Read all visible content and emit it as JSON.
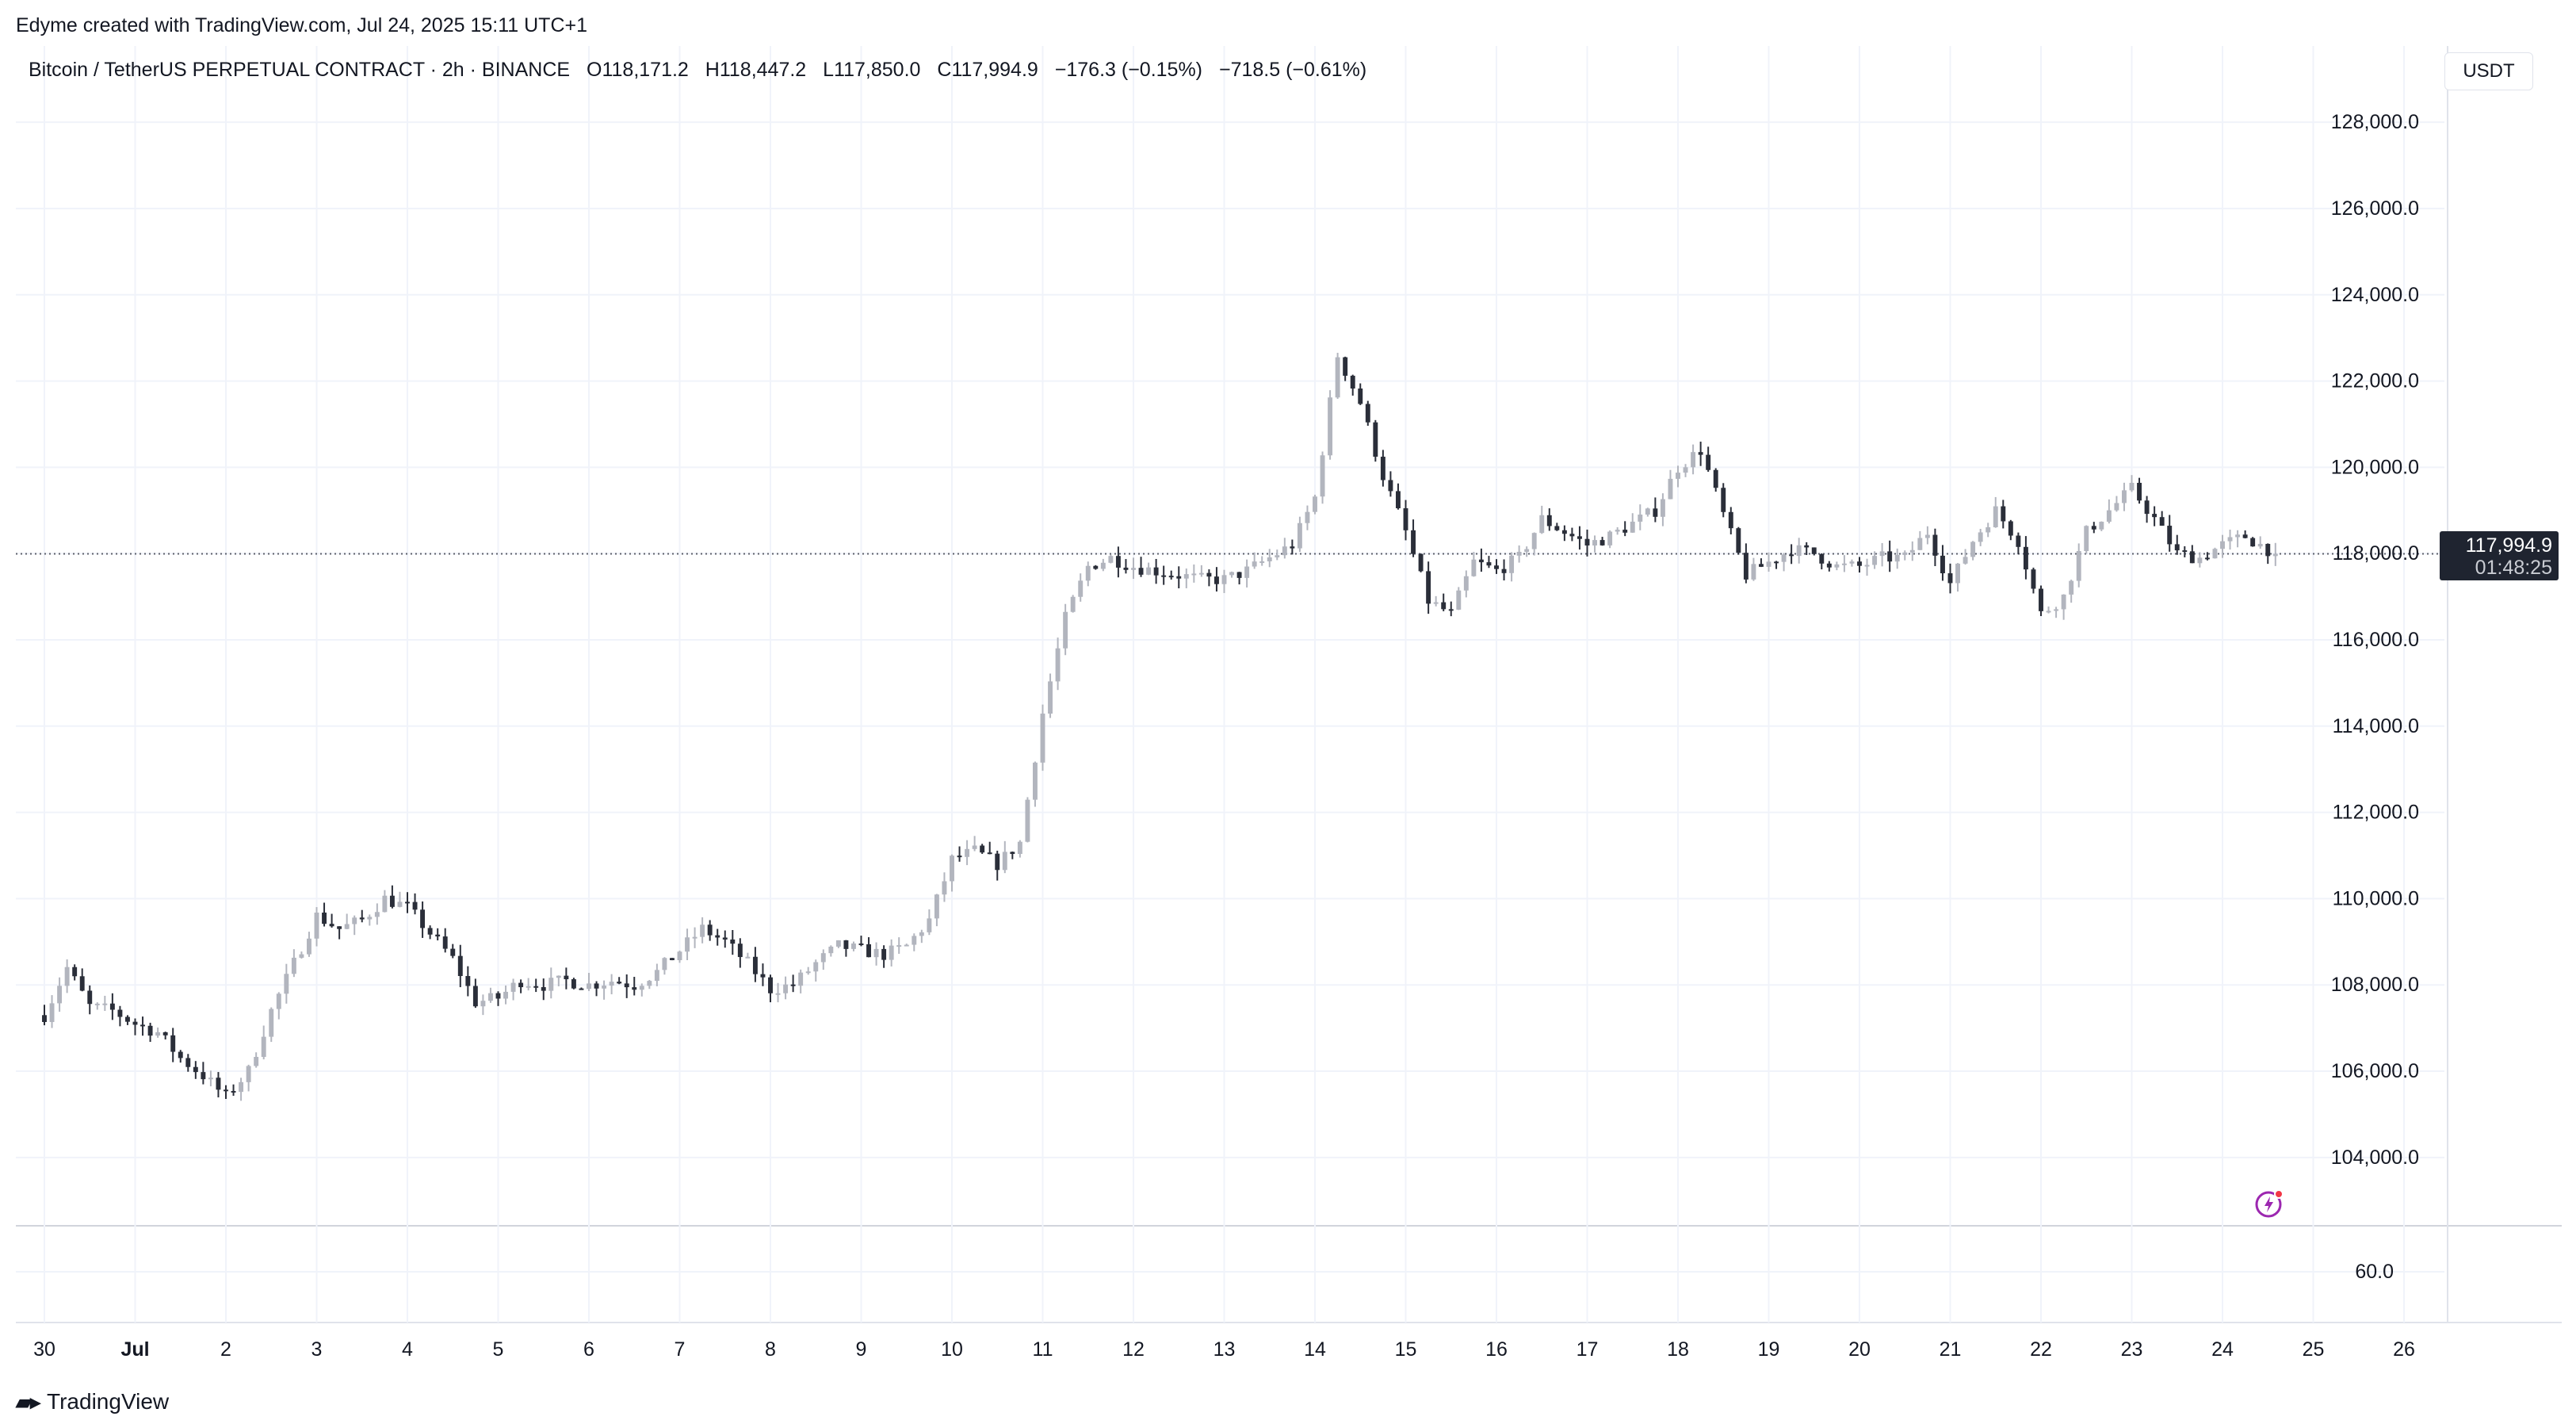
{
  "header": {
    "credit": "Edyme created with TradingView.com, Jul 24, 2025 15:11 UTC+1",
    "symbol": "Bitcoin / TetherUS PERPETUAL CONTRACT · 2h · BINANCE",
    "open": "O118,171.2",
    "high": "H118,447.2",
    "low": "L117,850.0",
    "close": "C117,994.9",
    "change": "−176.3 (−0.15%)",
    "change2": "−718.5 (−0.61%)"
  },
  "currency_button": "USDT",
  "last_price": {
    "price": "117,994.9",
    "countdown": "01:48:25"
  },
  "footer": {
    "brand": "TradingView"
  },
  "colors": {
    "up": "#b2b5be",
    "down": "#2a2e39",
    "grid": "#f0f3fa",
    "text": "#131722"
  },
  "icons": {
    "alert": "lightning-alert-icon",
    "logo": "tradingview-logo-icon"
  },
  "chart_data": {
    "type": "candlestick",
    "interval": "2h",
    "y_ticks": [
      "104,000.0",
      "106,000.0",
      "108,000.0",
      "110,000.0",
      "112,000.0",
      "114,000.0",
      "116,000.0",
      "118,000.0",
      "120,000.0",
      "122,000.0",
      "124,000.0",
      "126,000.0",
      "128,000.0"
    ],
    "ylim": [
      102600,
      129400
    ],
    "x_ticks": [
      "30",
      "Jul",
      "2",
      "3",
      "4",
      "5",
      "6",
      "7",
      "8",
      "9",
      "10",
      "11",
      "12",
      "13",
      "14",
      "15",
      "16",
      "17",
      "18",
      "19",
      "20",
      "21",
      "22",
      "23",
      "24",
      "25",
      "26"
    ],
    "x_range": [
      "Jun 29",
      "Jul 27"
    ],
    "indicator_pane": {
      "tick": "60.0"
    },
    "last_close": 117994.9,
    "close_path": [
      [
        "Jun 30 00:00",
        107300
      ],
      [
        "Jun 30 06:00",
        108400
      ],
      [
        "Jun 30 12:00",
        107500
      ],
      [
        "Jun 30 18:00",
        107400
      ],
      [
        "Jul 1 00:00",
        107100
      ],
      [
        "Jul 1 06:00",
        106900
      ],
      [
        "Jul 1 12:00",
        106300
      ],
      [
        "Jul 1 18:00",
        105900
      ],
      [
        "Jul 2 00:00",
        105400
      ],
      [
        "Jul 2 06:00",
        106000
      ],
      [
        "Jul 2 12:00",
        107400
      ],
      [
        "Jul 2 18:00",
        108500
      ],
      [
        "Jul 3 00:00",
        109600
      ],
      [
        "Jul 3 06:00",
        109300
      ],
      [
        "Jul 3 12:00",
        109500
      ],
      [
        "Jul 3 18:00",
        110000
      ],
      [
        "Jul 4 00:00",
        109800
      ],
      [
        "Jul 4 06:00",
        109200
      ],
      [
        "Jul 4 12:00",
        108600
      ],
      [
        "Jul 4 18:00",
        107600
      ],
      [
        "Jul 5 00:00",
        107700
      ],
      [
        "Jul 5 06:00",
        108100
      ],
      [
        "Jul 5 12:00",
        108000
      ],
      [
        "Jul 5 18:00",
        108100
      ],
      [
        "Jul 6 00:00",
        108000
      ],
      [
        "Jul 6 06:00",
        108100
      ],
      [
        "Jul 6 12:00",
        108000
      ],
      [
        "Jul 6 18:00",
        108300
      ],
      [
        "Jul 7 00:00",
        108800
      ],
      [
        "Jul 7 06:00",
        109300
      ],
      [
        "Jul 7 12:00",
        109000
      ],
      [
        "Jul 7 18:00",
        108500
      ],
      [
        "Jul 8 00:00",
        107900
      ],
      [
        "Jul 8 06:00",
        108000
      ],
      [
        "Jul 8 12:00",
        108500
      ],
      [
        "Jul 8 18:00",
        108900
      ],
      [
        "Jul 9 00:00",
        108800
      ],
      [
        "Jul 9 06:00",
        108700
      ],
      [
        "Jul 9 12:00",
        108900
      ],
      [
        "Jul 9 18:00",
        109500
      ],
      [
        "Jul 10 00:00",
        110900
      ],
      [
        "Jul 10 06:00",
        111100
      ],
      [
        "Jul 10 12:00",
        110800
      ],
      [
        "Jul 10 18:00",
        111300
      ],
      [
        "Jul 11 00:00",
        114300
      ],
      [
        "Jul 11 06:00",
        116500
      ],
      [
        "Jul 11 12:00",
        117700
      ],
      [
        "Jul 11 18:00",
        117900
      ],
      [
        "Jul 12 00:00",
        117700
      ],
      [
        "Jul 12 06:00",
        117600
      ],
      [
        "Jul 12 12:00",
        117500
      ],
      [
        "Jul 12 18:00",
        117400
      ],
      [
        "Jul 13 00:00",
        117400
      ],
      [
        "Jul 13 06:00",
        117600
      ],
      [
        "Jul 13 12:00",
        117900
      ],
      [
        "Jul 13 18:00",
        118200
      ],
      [
        "Jul 14 00:00",
        119300
      ],
      [
        "Jul 14 06:00",
        122600
      ],
      [
        "Jul 14 12:00",
        121500
      ],
      [
        "Jul 14 18:00",
        119800
      ],
      [
        "Jul 15 00:00",
        118500
      ],
      [
        "Jul 15 06:00",
        116900
      ],
      [
        "Jul 15 12:00",
        116600
      ],
      [
        "Jul 15 18:00",
        117800
      ],
      [
        "Jul 16 00:00",
        117600
      ],
      [
        "Jul 16 06:00",
        117900
      ],
      [
        "Jul 16 12:00",
        118800
      ],
      [
        "Jul 16 18:00",
        118500
      ],
      [
        "Jul 17 00:00",
        118200
      ],
      [
        "Jul 17 06:00",
        118400
      ],
      [
        "Jul 17 12:00",
        118700
      ],
      [
        "Jul 17 18:00",
        119000
      ],
      [
        "Jul 18 00:00",
        120000
      ],
      [
        "Jul 18 06:00",
        120400
      ],
      [
        "Jul 18 12:00",
        118900
      ],
      [
        "Jul 18 18:00",
        117500
      ],
      [
        "Jul 19 00:00",
        117800
      ],
      [
        "Jul 19 06:00",
        118100
      ],
      [
        "Jul 19 12:00",
        118000
      ],
      [
        "Jul 19 18:00",
        117700
      ],
      [
        "Jul 20 00:00",
        117700
      ],
      [
        "Jul 20 06:00",
        117900
      ],
      [
        "Jul 20 12:00",
        117900
      ],
      [
        "Jul 20 18:00",
        118500
      ],
      [
        "Jul 21 00:00",
        117300
      ],
      [
        "Jul 21 06:00",
        118300
      ],
      [
        "Jul 21 12:00",
        119000
      ],
      [
        "Jul 21 18:00",
        118300
      ],
      [
        "Jul 22 00:00",
        116600
      ],
      [
        "Jul 22 06:00",
        117000
      ],
      [
        "Jul 22 12:00",
        118500
      ],
      [
        "Jul 22 18:00",
        119000
      ],
      [
        "Jul 23 00:00",
        119500
      ],
      [
        "Jul 23 06:00",
        118800
      ],
      [
        "Jul 23 12:00",
        118000
      ],
      [
        "Jul 23 18:00",
        117900
      ],
      [
        "Jul 24 00:00",
        118200
      ],
      [
        "Jul 24 06:00",
        118400
      ],
      [
        "Jul 24 12:00",
        118100
      ],
      [
        "Jul 24 14:00",
        117994.9
      ]
    ]
  }
}
